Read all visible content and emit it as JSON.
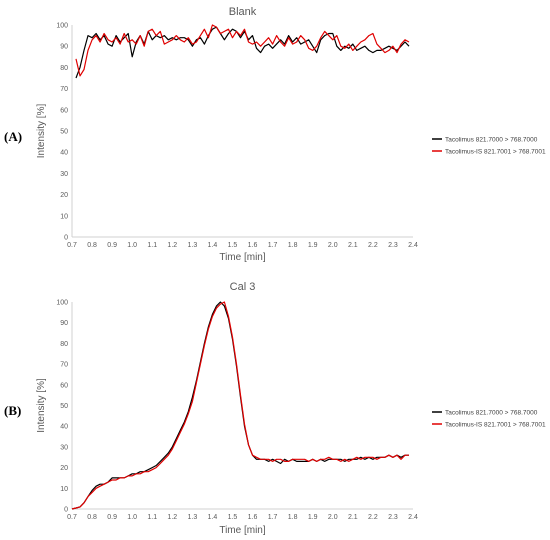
{
  "figure": {
    "panels": [
      {
        "label": "(A)"
      },
      {
        "label": "(B)"
      }
    ]
  },
  "chart_data": [
    {
      "type": "line",
      "title": "Blank",
      "xlabel": "Time [min]",
      "ylabel": "Intensity [%]",
      "xlim": [
        0.7,
        2.4
      ],
      "ylim": [
        0,
        100
      ],
      "xticks": [
        "0.7",
        "0.8",
        "0.9",
        "1.0",
        "1.1",
        "1.2",
        "1.3",
        "1.4",
        "1.5",
        "1.6",
        "1.7",
        "1.8",
        "1.9",
        "2.0",
        "2.1",
        "2.2",
        "2.3",
        "2.4"
      ],
      "yticks": [
        "0",
        "10",
        "20",
        "30",
        "40",
        "50",
        "60",
        "70",
        "80",
        "90",
        "100"
      ],
      "grid": false,
      "legend_position": "right",
      "series": [
        {
          "name": "Tacolimus 821.7000 > 768.7000",
          "color": "#000000",
          "x": [
            0.72,
            0.74,
            0.76,
            0.78,
            0.8,
            0.82,
            0.84,
            0.86,
            0.88,
            0.9,
            0.92,
            0.94,
            0.96,
            0.98,
            1.0,
            1.02,
            1.04,
            1.06,
            1.08,
            1.1,
            1.12,
            1.14,
            1.16,
            1.18,
            1.2,
            1.22,
            1.24,
            1.26,
            1.28,
            1.3,
            1.32,
            1.34,
            1.36,
            1.38,
            1.4,
            1.42,
            1.44,
            1.46,
            1.48,
            1.5,
            1.52,
            1.54,
            1.56,
            1.58,
            1.6,
            1.62,
            1.64,
            1.66,
            1.68,
            1.7,
            1.72,
            1.74,
            1.76,
            1.78,
            1.8,
            1.82,
            1.84,
            1.86,
            1.88,
            1.9,
            1.92,
            1.94,
            1.96,
            1.98,
            2.0,
            2.02,
            2.04,
            2.06,
            2.08,
            2.1,
            2.12,
            2.14,
            2.16,
            2.18,
            2.2,
            2.22,
            2.24,
            2.26,
            2.28,
            2.3,
            2.32,
            2.34,
            2.36,
            2.38
          ],
          "y": [
            75,
            80,
            88,
            95,
            94,
            96,
            93,
            95,
            91,
            90,
            95,
            92,
            94,
            96,
            85,
            92,
            95,
            91,
            97,
            93,
            95,
            94,
            95,
            93,
            94,
            93,
            94,
            94,
            93,
            90,
            93,
            94,
            91,
            95,
            98,
            99,
            96,
            93,
            96,
            98,
            97,
            94,
            97,
            93,
            95,
            89,
            87,
            90,
            91,
            89,
            91,
            93,
            91,
            95,
            92,
            94,
            91,
            92,
            93,
            90,
            87,
            93,
            95,
            96,
            96,
            90,
            88,
            90,
            89,
            91,
            88,
            89,
            90,
            88,
            87,
            88,
            88,
            89,
            90,
            89,
            88,
            90,
            92,
            90
          ]
        },
        {
          "name": "Tacolimus-IS 821.7001 > 768.7001",
          "color": "#e00000",
          "x": [
            0.72,
            0.74,
            0.76,
            0.78,
            0.8,
            0.82,
            0.84,
            0.86,
            0.88,
            0.9,
            0.92,
            0.94,
            0.96,
            0.98,
            1.0,
            1.02,
            1.04,
            1.06,
            1.08,
            1.1,
            1.12,
            1.14,
            1.16,
            1.18,
            1.2,
            1.22,
            1.24,
            1.26,
            1.28,
            1.3,
            1.32,
            1.34,
            1.36,
            1.38,
            1.4,
            1.42,
            1.44,
            1.46,
            1.48,
            1.5,
            1.52,
            1.54,
            1.56,
            1.58,
            1.6,
            1.62,
            1.64,
            1.66,
            1.68,
            1.7,
            1.72,
            1.74,
            1.76,
            1.78,
            1.8,
            1.82,
            1.84,
            1.86,
            1.88,
            1.9,
            1.92,
            1.94,
            1.96,
            1.98,
            2.0,
            2.02,
            2.04,
            2.06,
            2.08,
            2.1,
            2.12,
            2.14,
            2.16,
            2.18,
            2.2,
            2.22,
            2.24,
            2.26,
            2.28,
            2.3,
            2.32,
            2.34,
            2.36,
            2.38
          ],
          "y": [
            84,
            76,
            79,
            88,
            93,
            95,
            92,
            96,
            93,
            92,
            94,
            91,
            96,
            92,
            93,
            91,
            95,
            90,
            97,
            98,
            95,
            97,
            91,
            92,
            93,
            95,
            93,
            92,
            94,
            91,
            92,
            95,
            98,
            94,
            100,
            99,
            96,
            97,
            98,
            94,
            97,
            95,
            98,
            92,
            91,
            92,
            90,
            92,
            94,
            91,
            95,
            92,
            90,
            94,
            91,
            92,
            95,
            93,
            89,
            88,
            90,
            94,
            97,
            95,
            93,
            95,
            90,
            89,
            91,
            88,
            90,
            92,
            93,
            95,
            96,
            91,
            89,
            87,
            88,
            90,
            87,
            91,
            93,
            92
          ]
        }
      ]
    },
    {
      "type": "line",
      "title": "Cal 3",
      "xlabel": "Time [min]",
      "ylabel": "Intensity [%]",
      "xlim": [
        0.7,
        2.4
      ],
      "ylim": [
        0,
        100
      ],
      "xticks": [
        "0.7",
        "0.8",
        "0.9",
        "1.0",
        "1.1",
        "1.2",
        "1.3",
        "1.4",
        "1.5",
        "1.6",
        "1.7",
        "1.8",
        "1.9",
        "2.0",
        "2.1",
        "2.2",
        "2.3",
        "2.4"
      ],
      "yticks": [
        "0",
        "10",
        "20",
        "30",
        "40",
        "50",
        "60",
        "70",
        "80",
        "90",
        "100"
      ],
      "grid": false,
      "legend_position": "right",
      "series": [
        {
          "name": "Tacolimus 821.7000 > 768.7000",
          "color": "#000000",
          "x": [
            0.7,
            0.72,
            0.74,
            0.76,
            0.78,
            0.8,
            0.82,
            0.84,
            0.86,
            0.88,
            0.9,
            0.92,
            0.94,
            0.96,
            0.98,
            1.0,
            1.02,
            1.04,
            1.06,
            1.08,
            1.1,
            1.12,
            1.14,
            1.16,
            1.18,
            1.2,
            1.22,
            1.24,
            1.26,
            1.28,
            1.3,
            1.32,
            1.34,
            1.36,
            1.38,
            1.4,
            1.42,
            1.44,
            1.46,
            1.48,
            1.5,
            1.52,
            1.54,
            1.56,
            1.58,
            1.6,
            1.62,
            1.64,
            1.66,
            1.68,
            1.7,
            1.72,
            1.74,
            1.76,
            1.78,
            1.8,
            1.82,
            1.84,
            1.86,
            1.88,
            1.9,
            1.92,
            1.94,
            1.96,
            1.98,
            2.0,
            2.02,
            2.04,
            2.06,
            2.08,
            2.1,
            2.12,
            2.14,
            2.16,
            2.18,
            2.2,
            2.22,
            2.24,
            2.26,
            2.28,
            2.3,
            2.32,
            2.34,
            2.36,
            2.38
          ],
          "y": [
            0,
            0.5,
            1,
            3,
            6,
            9,
            11,
            12,
            12,
            13,
            15,
            15,
            15,
            15,
            16,
            17,
            17,
            18,
            18,
            19,
            20,
            21,
            23,
            25,
            27,
            30,
            34,
            38,
            42,
            47,
            54,
            62,
            71,
            80,
            88,
            94,
            98,
            100,
            98,
            92,
            82,
            69,
            54,
            40,
            31,
            26,
            24,
            24,
            24,
            23,
            24,
            23,
            22,
            24,
            23,
            24,
            23,
            23,
            23,
            23,
            24,
            23,
            24,
            23,
            24,
            24,
            24,
            24,
            23,
            24,
            24,
            24,
            25,
            24,
            25,
            24,
            25,
            25,
            25,
            26,
            25,
            26,
            25,
            26,
            26
          ]
        },
        {
          "name": "Tacolimus-IS 821.7001 > 768.7001",
          "color": "#e00000",
          "x": [
            0.7,
            0.72,
            0.74,
            0.76,
            0.78,
            0.8,
            0.82,
            0.84,
            0.86,
            0.88,
            0.9,
            0.92,
            0.94,
            0.96,
            0.98,
            1.0,
            1.02,
            1.04,
            1.06,
            1.08,
            1.1,
            1.12,
            1.14,
            1.16,
            1.18,
            1.2,
            1.22,
            1.24,
            1.26,
            1.28,
            1.3,
            1.32,
            1.34,
            1.36,
            1.38,
            1.4,
            1.42,
            1.44,
            1.46,
            1.48,
            1.5,
            1.52,
            1.54,
            1.56,
            1.58,
            1.6,
            1.62,
            1.64,
            1.66,
            1.68,
            1.7,
            1.72,
            1.74,
            1.76,
            1.78,
            1.8,
            1.82,
            1.84,
            1.86,
            1.88,
            1.9,
            1.92,
            1.94,
            1.96,
            1.98,
            2.0,
            2.02,
            2.04,
            2.06,
            2.08,
            2.1,
            2.12,
            2.14,
            2.16,
            2.18,
            2.2,
            2.22,
            2.24,
            2.26,
            2.28,
            2.3,
            2.32,
            2.34,
            2.36,
            2.38
          ],
          "y": [
            0,
            0.5,
            1,
            3,
            6,
            8,
            10,
            11,
            12,
            13,
            14,
            14,
            15,
            15,
            16,
            16,
            17,
            17,
            18,
            18,
            19,
            20,
            22,
            24,
            26,
            29,
            33,
            37,
            41,
            46,
            52,
            61,
            70,
            79,
            87,
            93,
            97,
            99,
            100,
            93,
            83,
            70,
            55,
            41,
            31,
            26,
            25,
            24,
            24,
            24,
            23,
            24,
            24,
            23,
            23,
            24,
            24,
            24,
            24,
            23,
            24,
            23,
            24,
            24,
            25,
            24,
            24,
            23,
            24,
            23,
            24,
            25,
            24,
            25,
            25,
            25,
            24,
            25,
            25,
            26,
            25,
            26,
            24,
            26,
            26
          ]
        }
      ]
    }
  ]
}
